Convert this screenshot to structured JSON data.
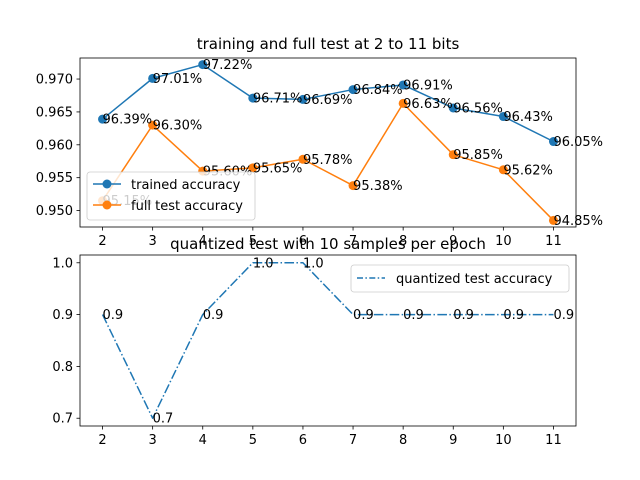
{
  "chart_data": [
    {
      "type": "line",
      "title": "training and full test at 2 to 11 bits",
      "x": [
        2,
        3,
        4,
        5,
        6,
        7,
        8,
        9,
        10,
        11
      ],
      "xlim": [
        1.55,
        11.45
      ],
      "ylim": [
        0.9475,
        0.9732
      ],
      "yticks": [
        0.95,
        0.955,
        0.96,
        0.965,
        0.97
      ],
      "ytick_labels": [
        "0.950",
        "0.955",
        "0.960",
        "0.965",
        "0.970"
      ],
      "legend_position": "lower-left",
      "grid": false,
      "series": [
        {
          "name": "trained accuracy",
          "color": "#1f77b4",
          "line_style": "solid",
          "marker": "circle",
          "values": [
            0.9639,
            0.9701,
            0.9722,
            0.9671,
            0.9669,
            0.9684,
            0.9691,
            0.9656,
            0.9643,
            0.9605
          ],
          "labels": [
            "96.39%",
            "97.01%",
            "97.22%",
            "96.71%",
            "96.69%",
            "96.84%",
            "96.91%",
            "96.56%",
            "96.43%",
            "96.05%"
          ]
        },
        {
          "name": "full test accuracy",
          "color": "#ff7f0e",
          "line_style": "solid",
          "marker": "circle",
          "values": [
            0.9515,
            0.963,
            0.956,
            0.9565,
            0.9578,
            0.9538,
            0.9663,
            0.9585,
            0.9562,
            0.9485
          ],
          "labels": [
            "95.15%",
            "96.30%",
            "95.60%",
            "95.65%",
            "95.78%",
            "95.38%",
            "96.63%",
            "95.85%",
            "95.62%",
            "94.85%"
          ]
        }
      ]
    },
    {
      "type": "line",
      "title": "quantized test with 10 samples per epoch",
      "x": [
        2,
        3,
        4,
        5,
        6,
        7,
        8,
        9,
        10,
        11
      ],
      "xlim": [
        1.55,
        11.45
      ],
      "ylim": [
        0.685,
        1.015
      ],
      "yticks": [
        0.7,
        0.8,
        0.9,
        1.0
      ],
      "ytick_labels": [
        "0.7",
        "0.8",
        "0.9",
        "1.0"
      ],
      "legend_position": "upper-right",
      "grid": false,
      "series": [
        {
          "name": "quantized test accuracy",
          "color": "#1f77b4",
          "line_style": "dashdot",
          "marker": "none",
          "values": [
            0.9,
            0.7,
            0.9,
            1.0,
            1.0,
            0.9,
            0.9,
            0.9,
            0.9,
            0.9
          ],
          "labels": [
            "0.9",
            "0.7",
            "0.9",
            "1.0",
            "1.0",
            "0.9",
            "0.9",
            "0.9",
            "0.9",
            "0.9"
          ]
        }
      ]
    }
  ]
}
